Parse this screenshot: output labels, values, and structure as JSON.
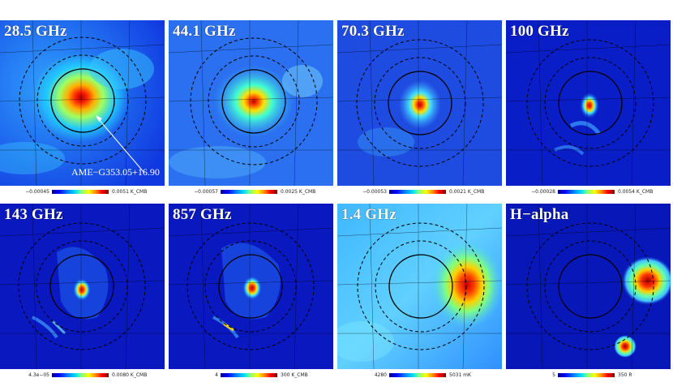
{
  "panels": [
    {
      "title": "28.5 GHz",
      "min": "−0.00045",
      "max": "0.0051 K_CMB"
    },
    {
      "title": "44.1 GHz",
      "min": "−0.00057",
      "max": "0.0025 K_CMB"
    },
    {
      "title": "70.3 GHz",
      "min": "−0.00053",
      "max": "0.0021 K_CMB"
    },
    {
      "title": "100 GHz",
      "min": "−0.00028",
      "max": "0.0054 K_CMB"
    },
    {
      "title": "143 GHz",
      "min": "4.3e−05",
      "max": "0.0080 K_CMB"
    },
    {
      "title": "857 GHz",
      "min": "4",
      "max": "300 K_CMB"
    },
    {
      "title": "1.4 GHz",
      "min": "4280",
      "max": "5031 mK"
    },
    {
      "title": "H−alpha",
      "min": "5",
      "max": "350 R"
    }
  ],
  "annotation": "AME−G353.05+16.90",
  "colors": {
    "background_map": "#1e3cff",
    "hot": "#ff2000",
    "grid": "#000000"
  }
}
